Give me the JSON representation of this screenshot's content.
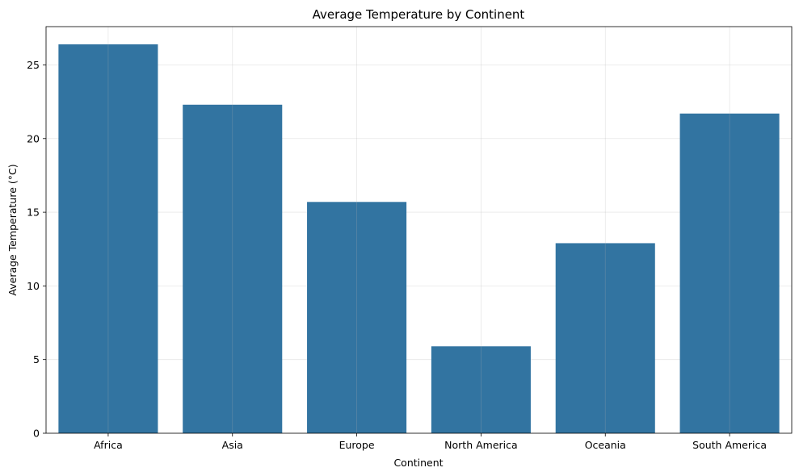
{
  "chart_data": {
    "type": "bar",
    "title": "Average Temperature by Continent",
    "xlabel": "Continent",
    "ylabel": "Average Temperature (°C)",
    "categories": [
      "Africa",
      "Asia",
      "Europe",
      "North America",
      "Oceania",
      "South America"
    ],
    "values": [
      26.4,
      22.3,
      15.7,
      5.9,
      12.9,
      21.7
    ],
    "ylim": [
      0,
      27.6
    ],
    "yticks": [
      0,
      5,
      10,
      15,
      20,
      25
    ],
    "grid": true,
    "bar_color": "#3274a1",
    "legend": false
  }
}
